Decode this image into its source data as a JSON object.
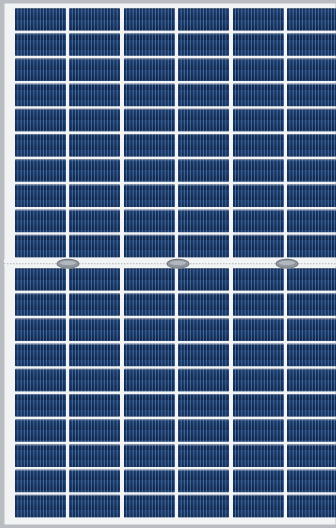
{
  "colors": {
    "frame": "#d7d9dc",
    "frame_edge": "#b9bcc0",
    "backsheet": "#f2f3f4",
    "cell_dark": "#0b1c3a",
    "cell_mid": "#12305c",
    "cell_light": "#1d4680",
    "finger_line": "#6d8fc0",
    "busbar": "#c9cdd3",
    "junction_box": "#8f959c"
  },
  "panel": {
    "halves": 2,
    "cell_columns_per_half_visible": 6,
    "cell_rows_per_half": 10,
    "junction_boxes": 3,
    "cell_type": "half-cut monocrystalline"
  }
}
